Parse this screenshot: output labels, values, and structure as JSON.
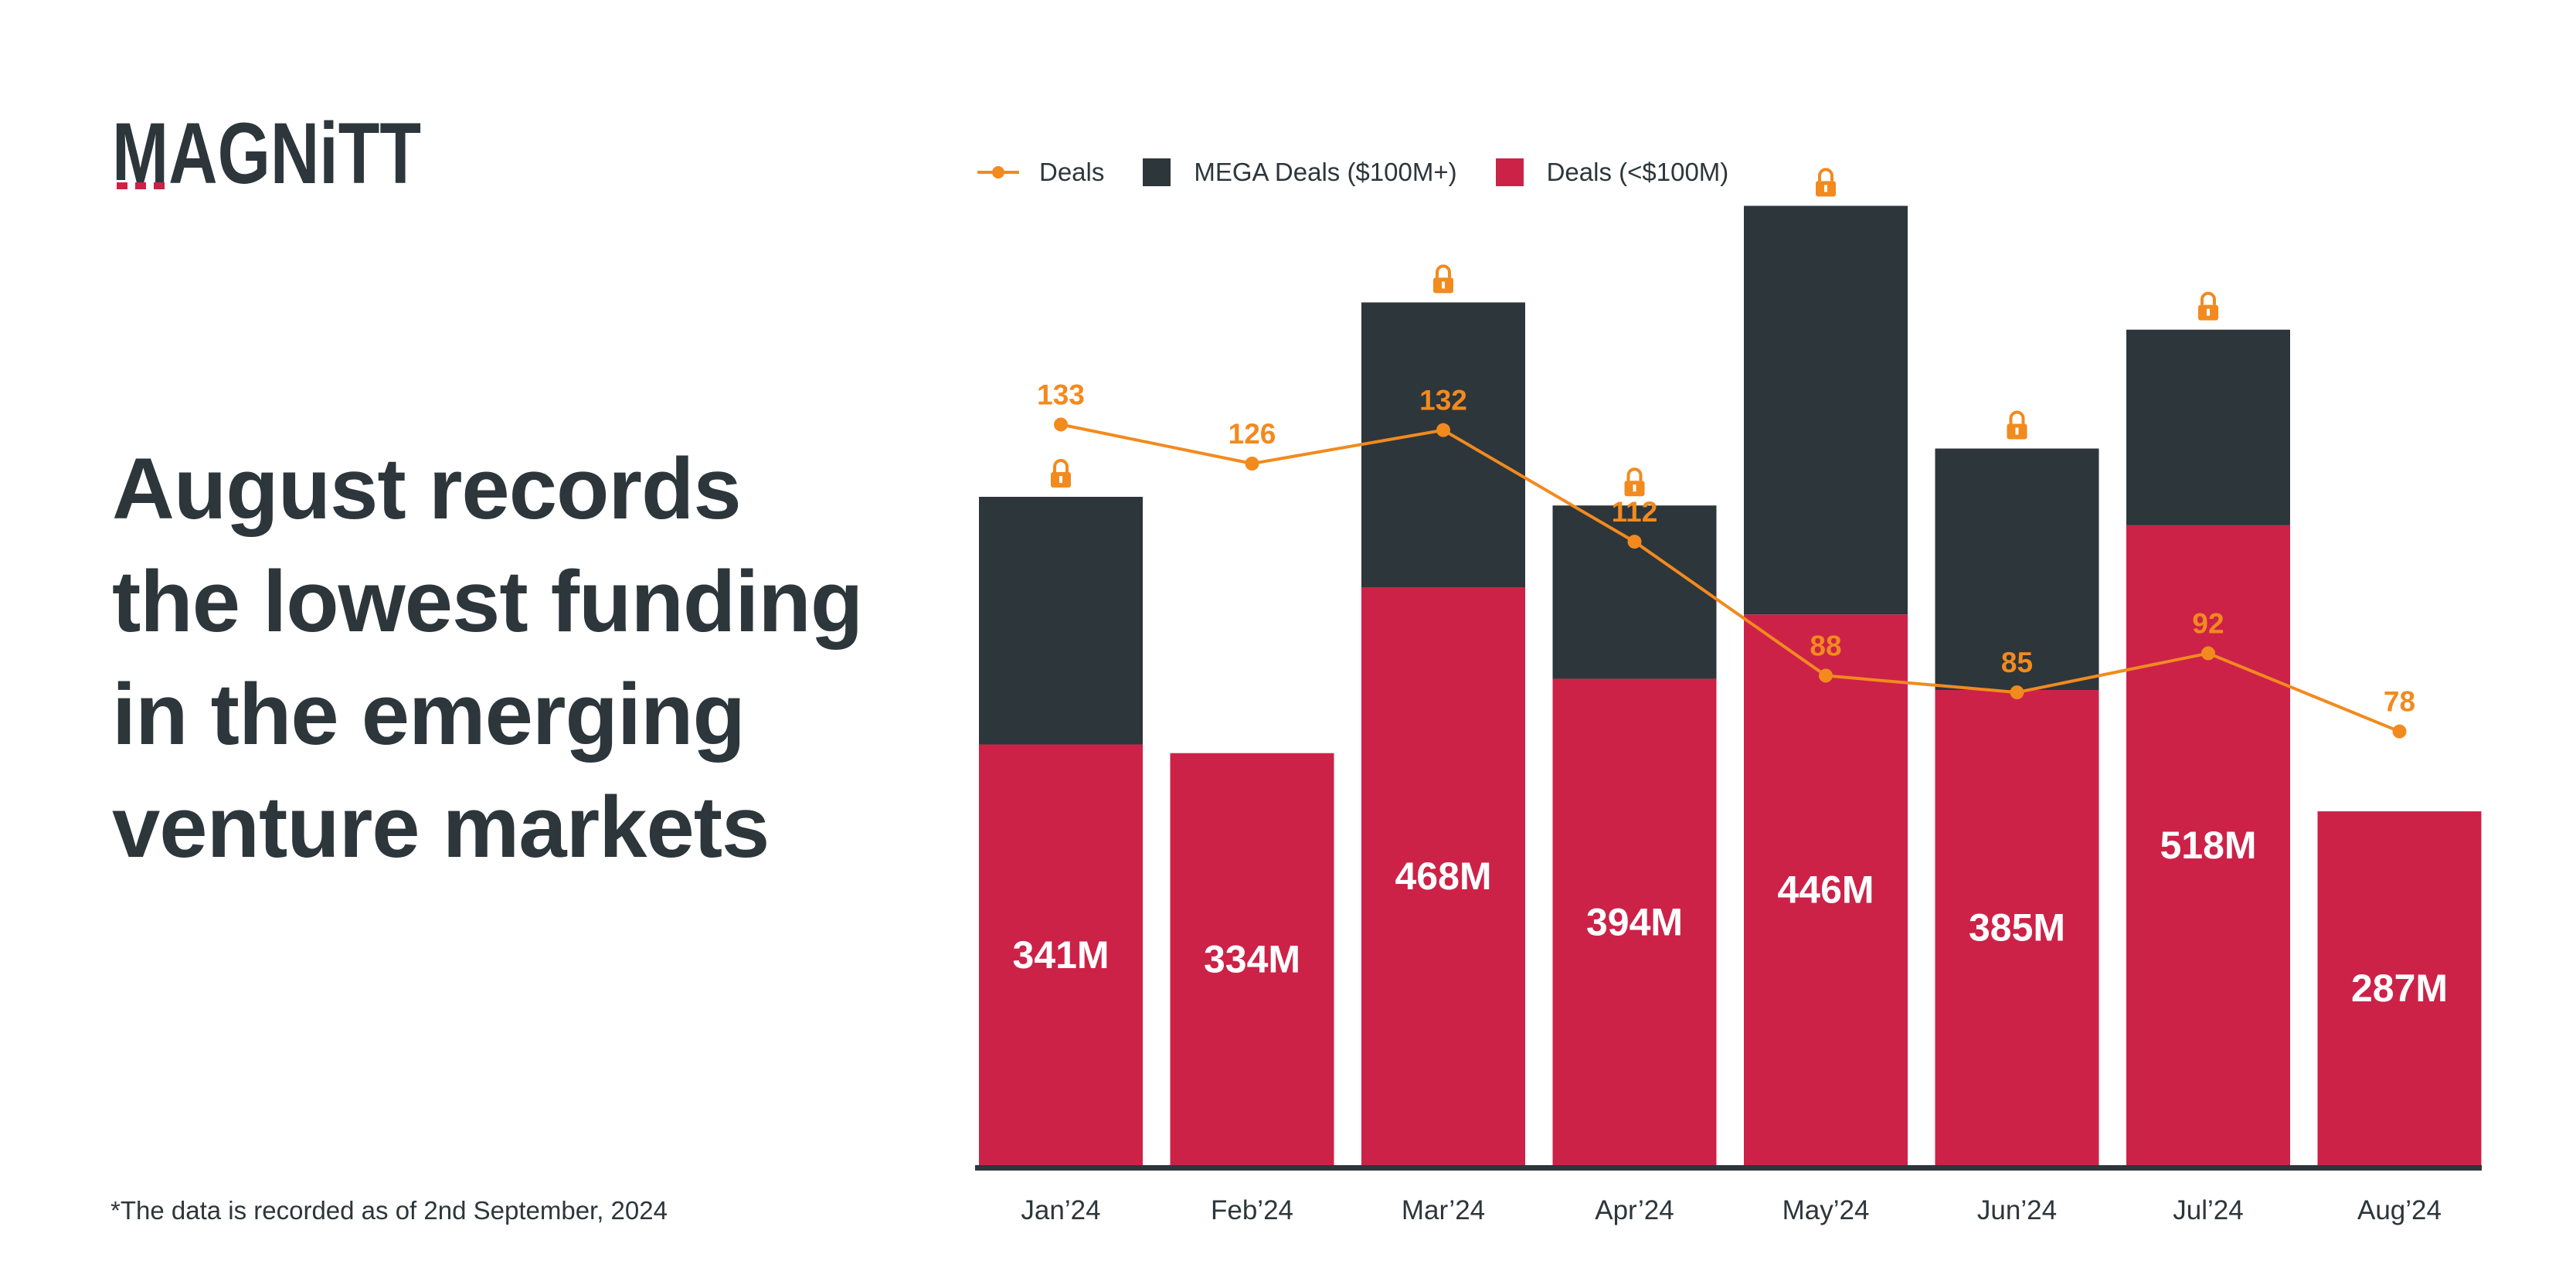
{
  "brand": {
    "logo_text": "MAGNiTT"
  },
  "headline": {
    "lines": [
      "August records",
      "the lowest funding",
      "in the emerging",
      "venture markets"
    ]
  },
  "footnote": "*The data is recorded as of 2nd September, 2024",
  "legend": {
    "deals_line": "Deals",
    "mega": "MEGA Deals ($100M+)",
    "small": "Deals (<$100M)"
  },
  "colors": {
    "small": "#cc2248",
    "mega": "#2d363b",
    "line": "#f28a1e",
    "text": "#2d363b"
  },
  "chart_data": {
    "type": "bar",
    "stacked": true,
    "categories": [
      "Jan’24",
      "Feb’24",
      "Mar’24",
      "Apr’24",
      "May’24",
      "Jun’24",
      "Jul’24",
      "Aug’24"
    ],
    "series": [
      {
        "name": "Deals (<$100M)",
        "values": [
          341,
          334,
          468,
          394,
          446,
          385,
          518,
          287
        ],
        "labels": [
          "341M",
          "334M",
          "468M",
          "394M",
          "446M",
          "385M",
          "518M",
          "287M"
        ]
      },
      {
        "name": "MEGA Deals ($100M+)",
        "values": [
          200,
          0,
          230,
          140,
          330,
          195,
          158,
          0
        ],
        "locked": [
          true,
          false,
          true,
          true,
          true,
          true,
          true,
          false
        ]
      }
    ],
    "line_series": {
      "name": "Deals",
      "values": [
        133,
        126,
        132,
        112,
        88,
        85,
        92,
        78
      ]
    },
    "ylim": [
      0,
      780
    ],
    "line_ylim": [
      0,
      180
    ],
    "xlabel": "",
    "ylabel": "",
    "grid": false,
    "legend_position": "top"
  }
}
